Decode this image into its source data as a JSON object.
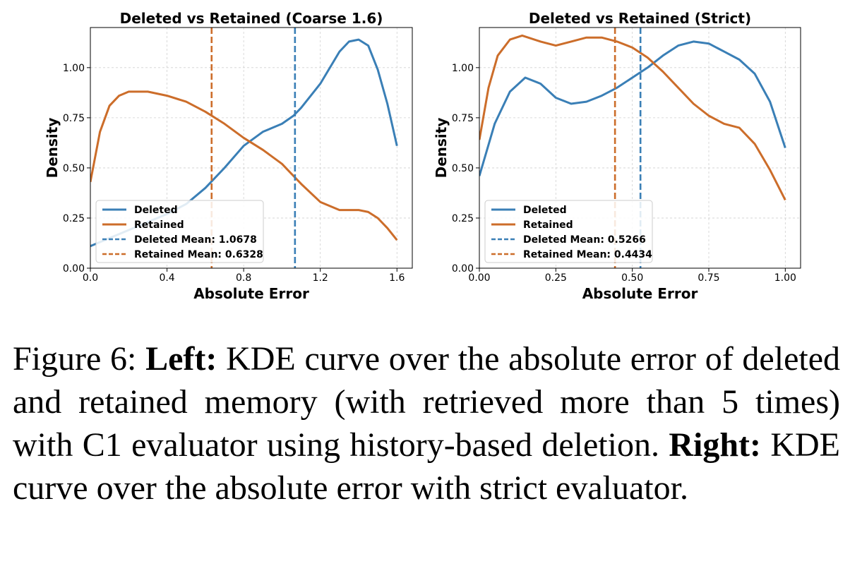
{
  "chart_data": [
    {
      "type": "line",
      "title": "Deleted vs Retained (Coarse 1.6)",
      "xlabel": "Absolute Error",
      "ylabel": "Density",
      "xlim": [
        0,
        1.68
      ],
      "ylim": [
        0,
        1.2
      ],
      "xticks": [
        0.0,
        0.4,
        0.8,
        1.2,
        1.6
      ],
      "xtick_labels": [
        "0.0",
        "0.4",
        "0.8",
        "1.2",
        "1.6"
      ],
      "yticks": [
        0,
        0.25,
        0.5,
        0.75,
        1.0
      ],
      "ytick_labels": [
        "0.00",
        "0.25",
        "0.50",
        "0.75",
        "1.00"
      ],
      "grid": true,
      "legend_position": "lower-left",
      "series": [
        {
          "name": "Deleted",
          "color": "#3a7fb6",
          "x": [
            0.0,
            0.1,
            0.2,
            0.3,
            0.4,
            0.5,
            0.6,
            0.7,
            0.8,
            0.9,
            1.0,
            1.06,
            1.1,
            1.2,
            1.3,
            1.35,
            1.4,
            1.45,
            1.5,
            1.55,
            1.6
          ],
          "y": [
            0.11,
            0.15,
            0.19,
            0.23,
            0.27,
            0.32,
            0.4,
            0.5,
            0.61,
            0.68,
            0.72,
            0.76,
            0.8,
            0.92,
            1.08,
            1.13,
            1.14,
            1.11,
            0.99,
            0.82,
            0.61
          ]
        },
        {
          "name": "Retained",
          "color": "#cc6d2a",
          "x": [
            0.0,
            0.05,
            0.1,
            0.15,
            0.2,
            0.25,
            0.3,
            0.4,
            0.5,
            0.6,
            0.7,
            0.8,
            0.9,
            1.0,
            1.05,
            1.1,
            1.2,
            1.3,
            1.4,
            1.45,
            1.5,
            1.55,
            1.6
          ],
          "y": [
            0.43,
            0.68,
            0.81,
            0.86,
            0.88,
            0.88,
            0.88,
            0.86,
            0.83,
            0.78,
            0.72,
            0.65,
            0.59,
            0.52,
            0.47,
            0.42,
            0.33,
            0.29,
            0.29,
            0.28,
            0.25,
            0.2,
            0.14
          ]
        }
      ],
      "vlines": [
        {
          "name": "Deleted Mean: 1.0678",
          "x": 1.0678,
          "color": "#3a7fb6"
        },
        {
          "name": "Retained Mean: 0.6328",
          "x": 0.6328,
          "color": "#cc6d2a"
        }
      ]
    },
    {
      "type": "line",
      "title": "Deleted vs Retained (Strict)",
      "xlabel": "Absolute Error",
      "ylabel": "Density",
      "xlim": [
        0,
        1.05
      ],
      "ylim": [
        0,
        1.2
      ],
      "xticks": [
        0.0,
        0.25,
        0.5,
        0.75,
        1.0
      ],
      "xtick_labels": [
        "0.00",
        "0.25",
        "0.50",
        "0.75",
        "1.00"
      ],
      "yticks": [
        0,
        0.25,
        0.5,
        0.75,
        1.0
      ],
      "ytick_labels": [
        "0.00",
        "0.25",
        "0.50",
        "0.75",
        "1.00"
      ],
      "grid": true,
      "legend_position": "lower-left",
      "series": [
        {
          "name": "Deleted",
          "color": "#3a7fb6",
          "x": [
            0.0,
            0.05,
            0.1,
            0.15,
            0.2,
            0.25,
            0.3,
            0.35,
            0.4,
            0.45,
            0.5,
            0.55,
            0.6,
            0.65,
            0.7,
            0.75,
            0.8,
            0.85,
            0.9,
            0.95,
            1.0
          ],
          "y": [
            0.46,
            0.72,
            0.88,
            0.95,
            0.92,
            0.85,
            0.82,
            0.83,
            0.86,
            0.9,
            0.95,
            1.0,
            1.06,
            1.11,
            1.13,
            1.12,
            1.08,
            1.04,
            0.97,
            0.83,
            0.6
          ]
        },
        {
          "name": "Retained",
          "color": "#cc6d2a",
          "x": [
            0.0,
            0.03,
            0.06,
            0.1,
            0.14,
            0.2,
            0.25,
            0.3,
            0.35,
            0.4,
            0.45,
            0.5,
            0.55,
            0.6,
            0.65,
            0.7,
            0.75,
            0.8,
            0.85,
            0.9,
            0.95,
            1.0
          ],
          "y": [
            0.64,
            0.9,
            1.06,
            1.14,
            1.16,
            1.13,
            1.11,
            1.13,
            1.15,
            1.15,
            1.13,
            1.1,
            1.05,
            0.98,
            0.9,
            0.82,
            0.76,
            0.72,
            0.7,
            0.62,
            0.49,
            0.34
          ]
        }
      ],
      "vlines": [
        {
          "name": "Deleted Mean: 0.5266",
          "x": 0.5266,
          "color": "#3a7fb6"
        },
        {
          "name": "Retained Mean: 0.4434",
          "x": 0.4434,
          "color": "#cc6d2a"
        }
      ]
    }
  ],
  "caption": {
    "figure_label": "Figure 6:",
    "left_label": "Left:",
    "left_text": "KDE curve over the absolute error of deleted and retained memory (with retrieved more than 5 times) with C1 evaluator using history-based deletion.",
    "right_label": "Right:",
    "right_text": "KDE curve over the absolute error with strict evaluator."
  }
}
